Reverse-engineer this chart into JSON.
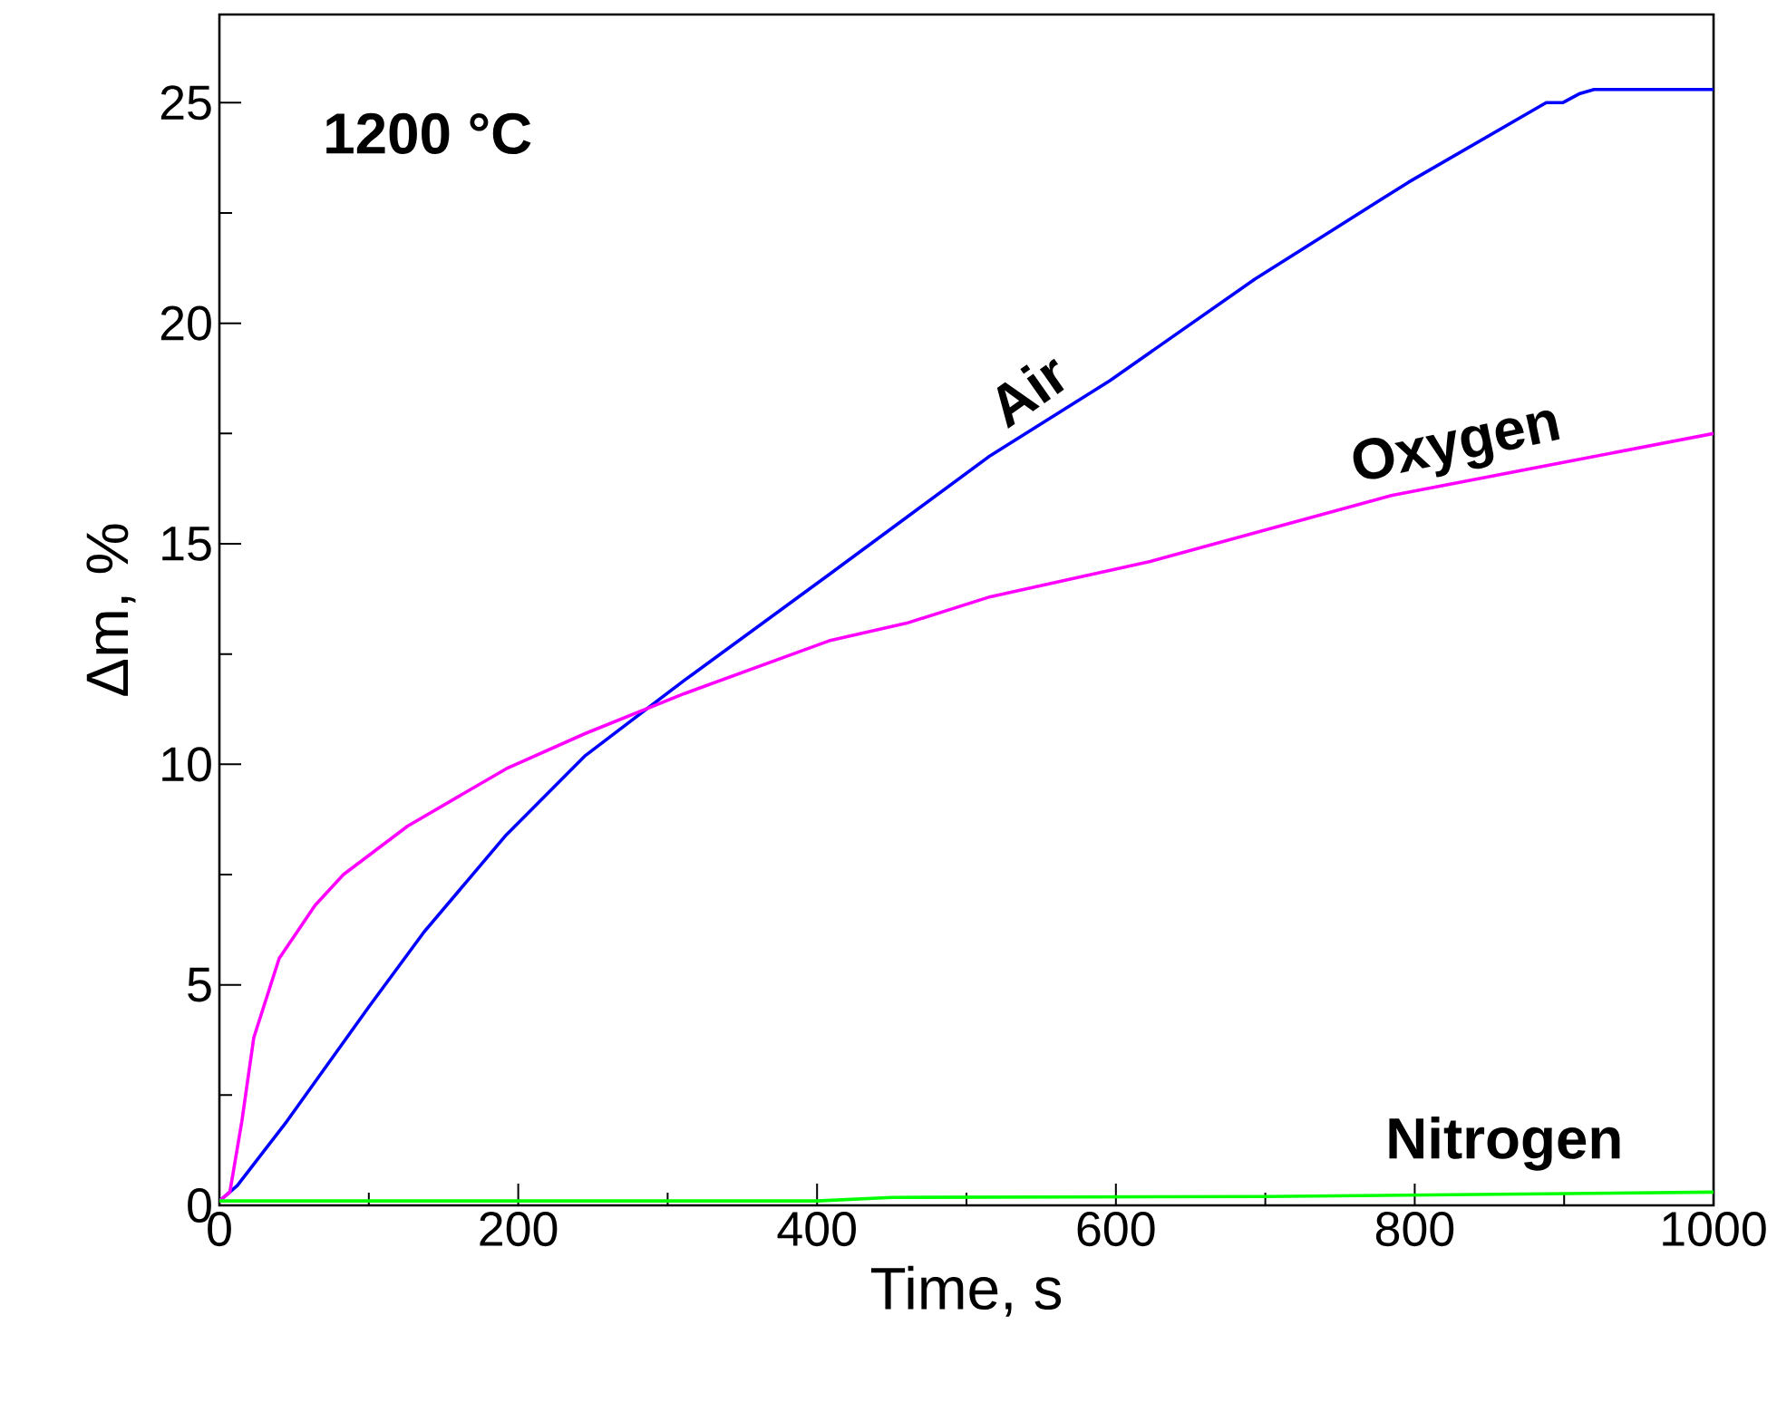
{
  "chart_data": {
    "type": "line",
    "xlabel": "Time, s",
    "ylabel": "Δm, %",
    "xlim": [
      0,
      1000
    ],
    "ylim": [
      0,
      27
    ],
    "xticks": [
      0,
      200,
      400,
      600,
      800,
      1000
    ],
    "yticks": [
      0,
      5,
      10,
      15,
      20,
      25
    ],
    "grid": false,
    "legend": false,
    "marker": "none",
    "line_style": "solid",
    "annotations": [
      "1200 °C"
    ],
    "series": [
      {
        "name": "Air",
        "color": "#0000ff",
        "x": [
          0,
          12,
          45,
          100,
          137,
          192,
          245,
          311,
          408,
          460,
          516,
          596,
          693,
          796,
          888,
          899,
          910,
          920,
          1000
        ],
        "values": [
          0.1,
          0.45,
          1.9,
          4.5,
          6.2,
          8.4,
          10.2,
          11.9,
          14.3,
          15.6,
          17.0,
          18.7,
          21.0,
          23.2,
          25.0,
          25.0,
          25.2,
          25.3,
          25.3
        ]
      },
      {
        "name": "Oxygen",
        "color": "#ff00ff",
        "x": [
          0,
          7,
          15,
          23,
          40,
          64,
          83,
          126,
          192,
          245,
          311,
          408,
          460,
          516,
          623,
          785,
          1000
        ],
        "values": [
          0.1,
          0.3,
          1.9,
          3.8,
          5.6,
          6.8,
          7.5,
          8.6,
          9.9,
          10.7,
          11.6,
          12.8,
          13.2,
          13.8,
          14.6,
          16.1,
          17.5
        ]
      },
      {
        "name": "Nitrogen",
        "color": "#00ff00",
        "x": [
          0,
          400,
          450,
          700,
          1000
        ],
        "values": [
          0.1,
          0.1,
          0.18,
          0.2,
          0.3
        ]
      }
    ]
  }
}
